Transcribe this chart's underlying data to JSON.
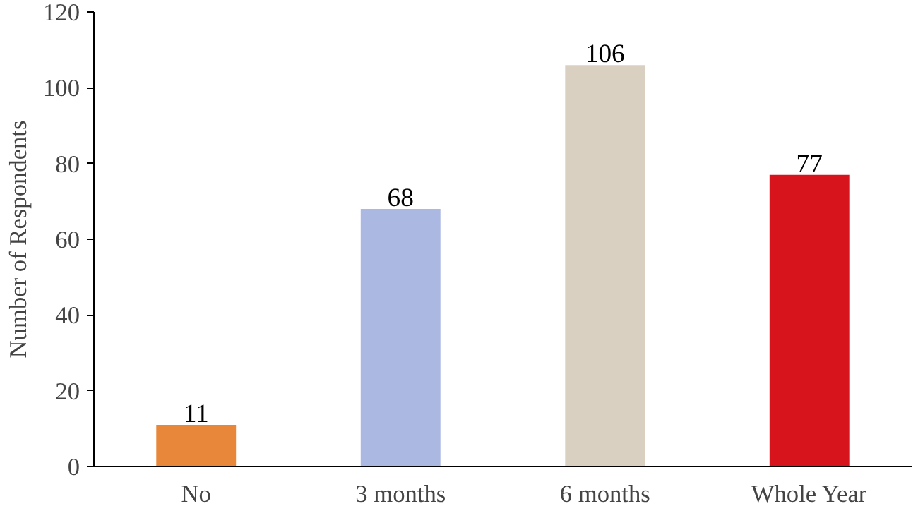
{
  "chart_data": {
    "type": "bar",
    "ylabel": "Number of Respondents",
    "categories": [
      "No",
      "3 months",
      "6 months",
      "Whole Year"
    ],
    "values": [
      11,
      68,
      106,
      77
    ],
    "colors": [
      "#e8873a",
      "#aab8e2",
      "#d9d0c2",
      "#d7141c"
    ],
    "ylim": [
      0,
      120
    ],
    "yticks": [
      0,
      20,
      40,
      60,
      80,
      100,
      120
    ],
    "grid": false,
    "data_labels": true
  }
}
